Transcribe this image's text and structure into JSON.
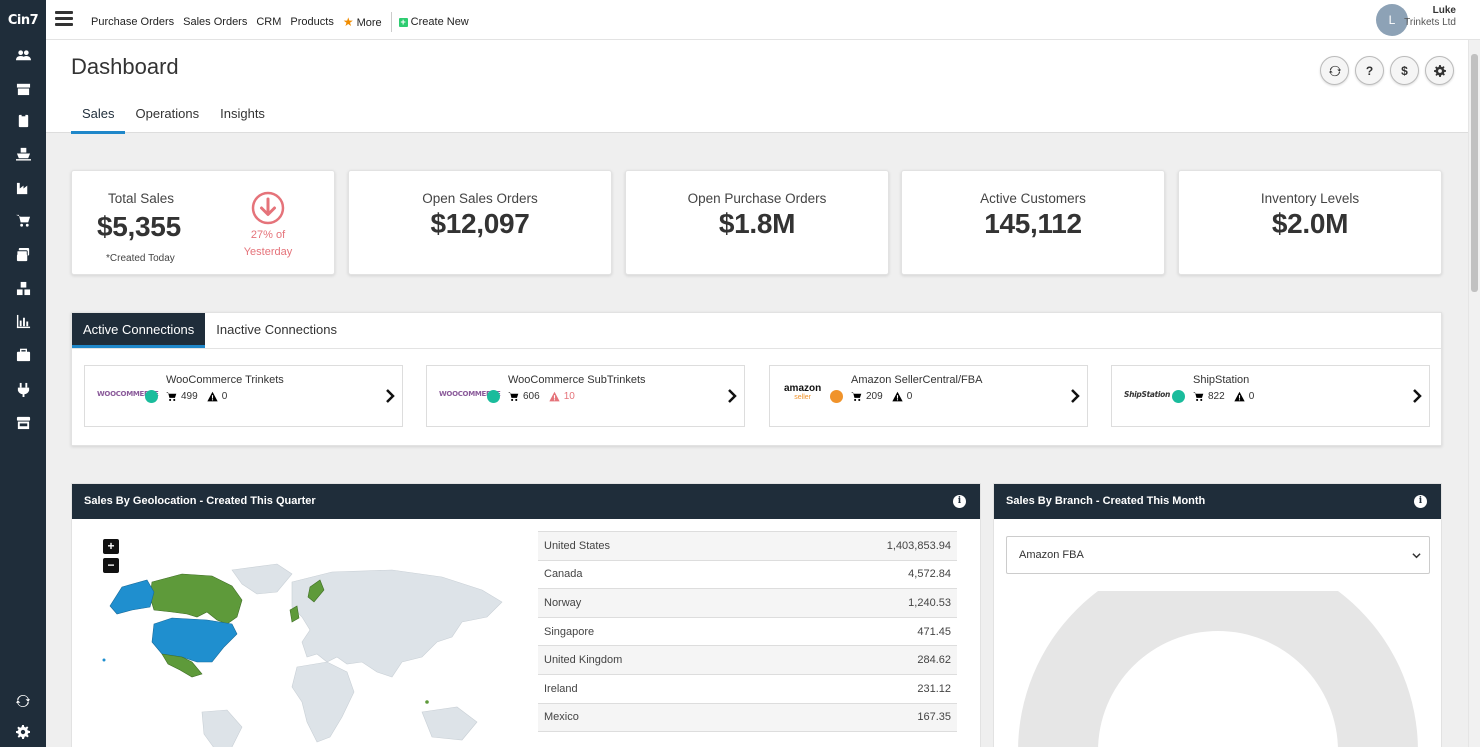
{
  "brand": {
    "logo_text": "Cin7"
  },
  "sidebar": {
    "items": [
      {
        "icon": "users-icon"
      },
      {
        "icon": "box-icon"
      },
      {
        "icon": "clipboard-icon"
      },
      {
        "icon": "ship-icon"
      },
      {
        "icon": "factory-icon"
      },
      {
        "icon": "cart-icon"
      },
      {
        "icon": "layers-icon"
      },
      {
        "icon": "boxes-icon"
      },
      {
        "icon": "bar-chart-icon"
      },
      {
        "icon": "briefcase-icon"
      },
      {
        "icon": "plug-icon"
      },
      {
        "icon": "store-icon"
      }
    ],
    "bottom": [
      {
        "icon": "sync-icon"
      },
      {
        "icon": "gear-icon"
      }
    ]
  },
  "topnav": {
    "items": [
      "Purchase Orders",
      "Sales Orders",
      "CRM",
      "Products"
    ],
    "more_label": "More",
    "create_label": "Create New"
  },
  "user": {
    "initial": "L",
    "name": "Luke",
    "company": "Trinkets Ltd"
  },
  "page": {
    "title": "Dashboard",
    "tabs": [
      {
        "label": "Sales",
        "active": true
      },
      {
        "label": "Operations"
      },
      {
        "label": "Insights"
      }
    ],
    "head_buttons": [
      "refresh-icon",
      "help-icon",
      "dollar-icon",
      "settings-icon"
    ],
    "dollar_glyph": "$",
    "help_glyph": "?"
  },
  "stats": {
    "total_sales": {
      "label": "Total Sales",
      "value": "$5,355",
      "note": "*Created Today",
      "trend_pct": "27% of",
      "trend_ref": "Yesterday"
    },
    "open_sales_orders": {
      "label": "Open Sales Orders",
      "value": "$12,097"
    },
    "open_purchase_orders": {
      "label": "Open Purchase Orders",
      "value": "$1.8M"
    },
    "active_customers": {
      "label": "Active Customers",
      "value": "145,112"
    },
    "inventory_levels": {
      "label": "Inventory Levels",
      "value": "$2.0M"
    }
  },
  "connections": {
    "tabs": [
      {
        "label": "Active Connections",
        "active": true
      },
      {
        "label": "Inactive Connections"
      }
    ],
    "items": [
      {
        "logo": "WOOCOMMERCE",
        "name": "WooCommerce Trinkets",
        "orders": "499",
        "warnings": "0",
        "status_color": "#1abc9c"
      },
      {
        "logo": "WOOCOMMERCE",
        "name": "WooCommerce SubTrinkets",
        "orders": "606",
        "warnings": "10",
        "status_color": "#1abc9c"
      },
      {
        "logo": "amazon",
        "logo_sub": "seller",
        "name": "Amazon SellerCentral/FBA",
        "orders": "209",
        "warnings": "0",
        "status_color": "#f0932b"
      },
      {
        "logo": "ShipStation",
        "name": "ShipStation",
        "orders": "822",
        "warnings": "0",
        "status_color": "#1abc9c"
      }
    ]
  },
  "geo_panel": {
    "title": "Sales By Geolocation - Created This Quarter",
    "info": "i",
    "zoom_in": "+",
    "zoom_out": "−",
    "rows": [
      {
        "country": "United States",
        "value": "1,403,853.94"
      },
      {
        "country": "Canada",
        "value": "4,572.84"
      },
      {
        "country": "Norway",
        "value": "1,240.53"
      },
      {
        "country": "Singapore",
        "value": "471.45"
      },
      {
        "country": "United Kingdom",
        "value": "284.62"
      },
      {
        "country": "Ireland",
        "value": "231.12"
      },
      {
        "country": "Mexico",
        "value": "167.35"
      }
    ]
  },
  "branch_panel": {
    "title": "Sales By Branch - Created This Month",
    "info": "i",
    "selected": "Amazon FBA"
  },
  "colors": {
    "sidebar": "#1f2d3a",
    "accent": "#1f87c9",
    "negative": "#e5737a",
    "map_green": "#5e9a3a",
    "map_blue": "#1f8fcf",
    "map_grey": "#dde3e8"
  }
}
